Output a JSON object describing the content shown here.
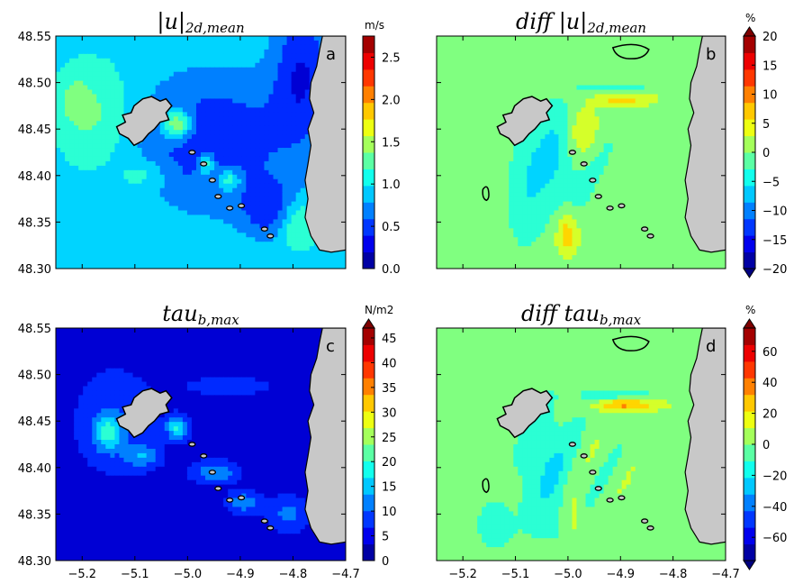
{
  "figure": {
    "panels": [
      {
        "id": "a",
        "title_main": "|u|",
        "title_sub": "2d,mean",
        "colorbar_unit": "m/s",
        "colorbar_ticks": [
          "0.0",
          "0.5",
          "1.0",
          "1.5",
          "2.0",
          "2.5"
        ],
        "cbar_ylim": [
          0,
          2.75
        ],
        "cbar_tick_values": [
          0,
          0.5,
          1.0,
          1.5,
          2.0,
          2.5
        ],
        "has_triangles": false,
        "field": "speed"
      },
      {
        "id": "b",
        "title_main": "diff |u|",
        "title_sub": "2d,mean",
        "colorbar_unit": "%",
        "colorbar_ticks": [
          "20",
          "15",
          "10",
          "5",
          "0",
          "−5",
          "−10",
          "−15",
          "−20"
        ],
        "cbar_ylim": [
          -20,
          20
        ],
        "cbar_tick_values": [
          20,
          15,
          10,
          5,
          0,
          -5,
          -10,
          -15,
          -20
        ],
        "has_triangles": true,
        "field": "diff"
      },
      {
        "id": "c",
        "title_main": "tau",
        "title_sub": "b,max",
        "colorbar_unit": "N/m2",
        "colorbar_ticks": [
          "0",
          "5",
          "10",
          "15",
          "20",
          "25",
          "30",
          "35",
          "40",
          "45"
        ],
        "cbar_ylim": [
          0,
          47
        ],
        "cbar_tick_values": [
          0,
          5,
          10,
          15,
          20,
          25,
          30,
          35,
          40,
          45
        ],
        "has_triangles": true,
        "field": "stress"
      },
      {
        "id": "d",
        "title_main": "diff tau",
        "title_sub": "b,max",
        "colorbar_unit": "%",
        "colorbar_ticks": [
          "60",
          "40",
          "20",
          "0",
          "−20",
          "−40",
          "−60"
        ],
        "cbar_ylim": [
          -75,
          75
        ],
        "cbar_tick_values": [
          60,
          40,
          20,
          0,
          -20,
          -40,
          -60
        ],
        "has_triangles": true,
        "field": "diff2"
      }
    ],
    "x_tick_labels": [
      "−5.2",
      "−5.1",
      "−5.0",
      "−4.9",
      "−4.8",
      "−4.7"
    ],
    "y_tick_labels": [
      "48.55",
      "48.50",
      "48.45",
      "48.40",
      "48.35",
      "48.30"
    ],
    "colors": {
      "land": "#c8c8c8",
      "coast": "#000000",
      "jet_low": "#00007f",
      "jet_high": "#7f0000"
    }
  },
  "chart_data": [
    {
      "type": "heatmap",
      "panel": "a",
      "title": "|u| 2d,mean",
      "colorbar_label": "m/s",
      "x_range": [
        -5.25,
        -4.7
      ],
      "y_range": [
        48.3,
        48.55
      ],
      "value_range": [
        0.0,
        2.75
      ],
      "x_ticks": [
        -5.2,
        -5.1,
        -5.0,
        -4.9,
        -4.8,
        -4.7
      ],
      "y_ticks": [
        48.3,
        48.35,
        48.4,
        48.45,
        48.5,
        48.55
      ]
    },
    {
      "type": "heatmap",
      "panel": "b",
      "title": "diff |u| 2d,mean",
      "colorbar_label": "%",
      "x_range": [
        -5.25,
        -4.7
      ],
      "y_range": [
        48.3,
        48.55
      ],
      "value_range": [
        -20,
        20
      ],
      "x_ticks": [
        -5.2,
        -5.1,
        -5.0,
        -4.9,
        -4.8,
        -4.7
      ],
      "y_ticks": [
        48.3,
        48.35,
        48.4,
        48.45,
        48.5,
        48.55
      ]
    },
    {
      "type": "heatmap",
      "panel": "c",
      "title": "tau b,max",
      "colorbar_label": "N/m2",
      "x_range": [
        -5.25,
        -4.7
      ],
      "y_range": [
        48.3,
        48.55
      ],
      "value_range": [
        0,
        47
      ],
      "x_ticks": [
        -5.2,
        -5.1,
        -5.0,
        -4.9,
        -4.8,
        -4.7
      ],
      "y_ticks": [
        48.3,
        48.35,
        48.4,
        48.45,
        48.5,
        48.55
      ]
    },
    {
      "type": "heatmap",
      "panel": "d",
      "title": "diff tau b,max",
      "colorbar_label": "%",
      "x_range": [
        -5.25,
        -4.7
      ],
      "y_range": [
        48.3,
        48.55
      ],
      "value_range": [
        -75,
        75
      ],
      "x_ticks": [
        -5.2,
        -5.1,
        -5.0,
        -4.9,
        -4.8,
        -4.7
      ],
      "y_ticks": [
        48.3,
        48.35,
        48.4,
        48.45,
        48.5,
        48.55
      ]
    }
  ]
}
